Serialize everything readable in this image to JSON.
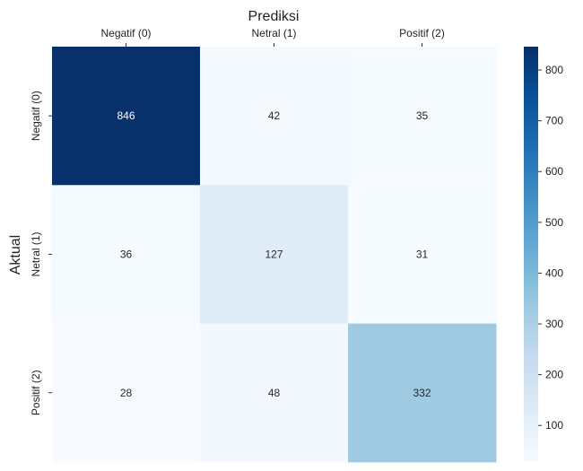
{
  "chart_data": {
    "type": "heatmap",
    "xlabel": "Prediksi",
    "ylabel": "Aktual",
    "x_categories": [
      "Negatif (0)",
      "Netral (1)",
      "Positif (2)"
    ],
    "y_categories": [
      "Negatif (0)",
      "Netral (1)",
      "Positif (2)"
    ],
    "values": [
      [
        846,
        42,
        35
      ],
      [
        36,
        127,
        31
      ],
      [
        28,
        48,
        332
      ]
    ],
    "colormap": "Blues",
    "colorbar": {
      "range": [
        28,
        846
      ],
      "ticks": [
        100,
        200,
        300,
        400,
        500,
        600,
        700,
        800
      ]
    },
    "annotations": true,
    "x_axis_position": "top",
    "grid": false
  },
  "colors": {
    "cmap_low": "#f7fbff",
    "cmap_high": "#08306b",
    "text_on_light": "#262626",
    "text_on_dark": "#ffffff"
  }
}
